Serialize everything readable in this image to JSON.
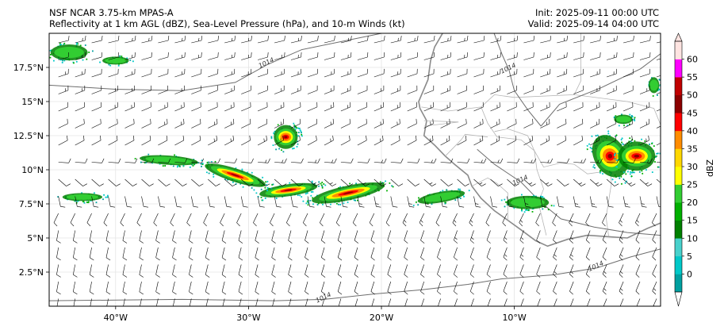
{
  "header": {
    "model": "NSF NCAR 3.75-km MPAS-A",
    "fields": "Reflectivity at 1 km AGL (dBZ), Sea-Level Pressure (hPa), and 10-m Winds (kt)",
    "init": "Init: 2025-09-11 00:00 UTC",
    "valid": "Valid: 2025-09-14 04:00 UTC"
  },
  "axes": {
    "lon_ticks": [
      {
        "label": "40°W",
        "value": -40
      },
      {
        "label": "30°W",
        "value": -30
      },
      {
        "label": "20°W",
        "value": -20
      },
      {
        "label": "10°W",
        "value": -10
      }
    ],
    "lat_ticks": [
      {
        "label": "17.5°N",
        "value": 17.5
      },
      {
        "label": "15°N",
        "value": 15
      },
      {
        "label": "12.5°N",
        "value": 12.5
      },
      {
        "label": "10°N",
        "value": 10
      },
      {
        "label": "7.5°N",
        "value": 7.5
      },
      {
        "label": "5°N",
        "value": 5
      },
      {
        "label": "2.5°N",
        "value": 2.5
      }
    ],
    "lon_range": [
      -45,
      1
    ],
    "lat_range": [
      0,
      20
    ]
  },
  "isobar_labels": [
    {
      "text": "1014",
      "lon": -28.6,
      "lat": 17.7
    },
    {
      "text": "1014",
      "lon": -10.4,
      "lat": 17.3
    },
    {
      "text": "1014",
      "lon": -9.5,
      "lat": 9.1
    },
    {
      "text": "1014",
      "lon": -3.8,
      "lat": 2.8
    },
    {
      "text": "1014",
      "lon": -24.3,
      "lat": 0.5
    }
  ],
  "colorbar": {
    "label": "dBZ",
    "ticks": [
      "0",
      "5",
      "10",
      "15",
      "20",
      "25",
      "30",
      "35",
      "40",
      "45",
      "50",
      "55",
      "60"
    ],
    "colors": [
      "#00a0a0",
      "#00c8c8",
      "#48d1cc",
      "#008000",
      "#00b000",
      "#32cd32",
      "#ffff00",
      "#ffd700",
      "#ff8c00",
      "#ff0000",
      "#8b0000",
      "#c00000",
      "#ff00ff",
      "#ffe4e1"
    ]
  },
  "storms": [
    {
      "lon": -22.5,
      "lat": 8.3,
      "rx": 2.8,
      "ry": 0.55,
      "rot": -12,
      "core": true
    },
    {
      "lon": -27.0,
      "lat": 8.5,
      "rx": 2.2,
      "ry": 0.45,
      "rot": -8,
      "core": true
    },
    {
      "lon": -31.0,
      "lat": 9.6,
      "rx": 2.4,
      "ry": 0.5,
      "rot": 18,
      "core": true
    },
    {
      "lon": -36.0,
      "lat": 10.7,
      "rx": 2.2,
      "ry": 0.35,
      "rot": 4,
      "core": false
    },
    {
      "lon": -27.2,
      "lat": 12.4,
      "rx": 0.9,
      "ry": 0.9,
      "rot": 0,
      "core": true
    },
    {
      "lon": -2.8,
      "lat": 11.0,
      "rx": 1.2,
      "ry": 1.7,
      "rot": -30,
      "core": true
    },
    {
      "lon": -0.8,
      "lat": 11.0,
      "rx": 1.4,
      "ry": 1.1,
      "rot": 0,
      "core": true
    },
    {
      "lon": -43.5,
      "lat": 18.6,
      "rx": 1.4,
      "ry": 0.6,
      "rot": 0,
      "core": false
    },
    {
      "lon": -15.5,
      "lat": 8.0,
      "rx": 1.8,
      "ry": 0.4,
      "rot": -10,
      "core": false
    },
    {
      "lon": -42.5,
      "lat": 8.0,
      "rx": 1.5,
      "ry": 0.3,
      "rot": 0,
      "core": false
    },
    {
      "lon": -9.0,
      "lat": 7.6,
      "rx": 1.6,
      "ry": 0.5,
      "rot": 0,
      "core": false
    },
    {
      "lon": 0.5,
      "lat": 16.2,
      "rx": 0.4,
      "ry": 0.6,
      "rot": 0,
      "core": false
    },
    {
      "lon": -1.8,
      "lat": 13.7,
      "rx": 0.7,
      "ry": 0.35,
      "rot": 0,
      "core": false
    },
    {
      "lon": -40.0,
      "lat": 18.0,
      "rx": 1.0,
      "ry": 0.3,
      "rot": 0,
      "core": false
    }
  ]
}
